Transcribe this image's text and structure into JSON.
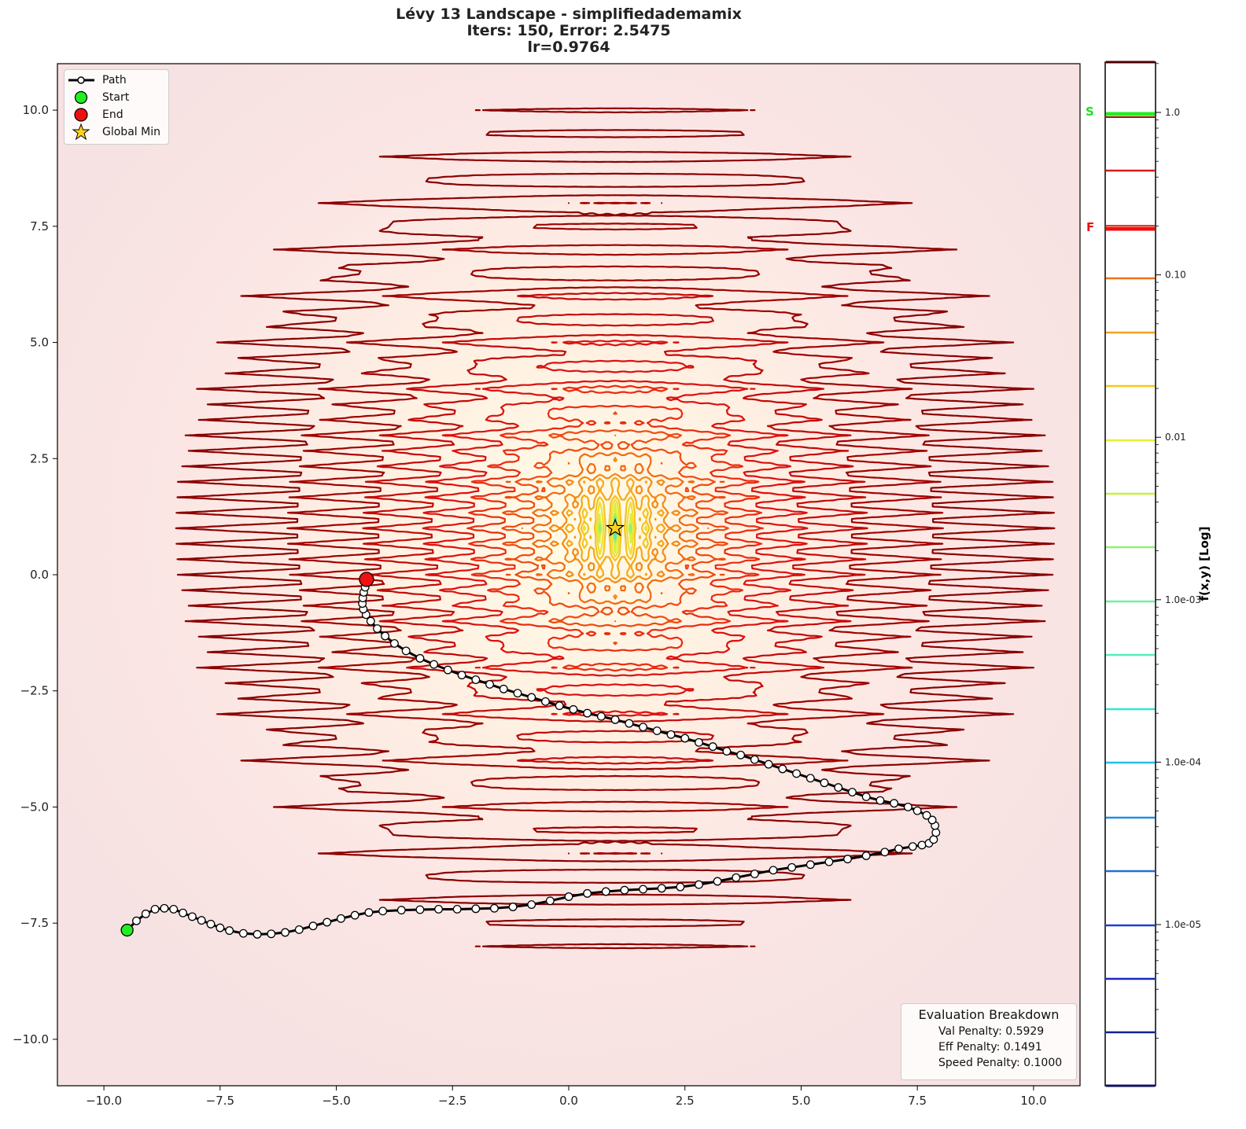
{
  "title": {
    "line1": "Lévy 13 Landscape - simplifiedademamix",
    "line2": "Iters: 150, Error: 2.5475",
    "line3": "lr=0.9764"
  },
  "legend": {
    "items": [
      {
        "label": "Path",
        "icon": "line-with-open-circle"
      },
      {
        "label": "Start",
        "icon": "green-circle"
      },
      {
        "label": "End",
        "icon": "red-circle"
      },
      {
        "label": "Global Min",
        "icon": "yellow-star"
      }
    ]
  },
  "eval_box": {
    "header": "Evaluation Breakdown",
    "val_penalty": "Val Penalty: 0.5929",
    "eff_penalty": "Eff Penalty: 0.1491",
    "speed_penalty": "Speed Penalty: 0.1000"
  },
  "colorbar": {
    "label": "f(x,y) [Log]",
    "ticks": [
      "1.0",
      "0.10",
      "0.01",
      "1.0e-03",
      "1.0e-04",
      "1.0e-05"
    ],
    "start_marker": "S",
    "final_marker": "F",
    "start_marker_color": "#22dd22",
    "final_marker_color": "#ee1111"
  },
  "chart_data": {
    "type": "contour+line",
    "title": "Lévy 13 Landscape - simplifiedademamix / Iters: 150, Error: 2.5475 / lr=0.9764",
    "xlabel": "",
    "ylabel": "",
    "xlim": [
      -11,
      11
    ],
    "ylim": [
      -11,
      11
    ],
    "x_ticks": [
      "−10.0",
      "−7.5",
      "−5.0",
      "−2.5",
      "0.0",
      "2.5",
      "5.0",
      "7.5",
      "10.0"
    ],
    "y_ticks": [
      "10.0",
      "7.5",
      "5.0",
      "2.5",
      "0.0",
      "−2.5",
      "−5.0",
      "−7.5",
      "−10.0"
    ],
    "colorbar_scale": "log",
    "colorbar_range": [
      1e-06,
      2.0
    ],
    "global_min": {
      "x": 1.0,
      "y": 1.0
    },
    "start": {
      "x": -9.5,
      "y": -7.65
    },
    "end": {
      "x": -4.35,
      "y": -0.1
    },
    "iterations": 150,
    "error": 2.5475,
    "lr": 0.9764,
    "path": [
      [
        -9.5,
        -7.65
      ],
      [
        -9.3,
        -7.45
      ],
      [
        -9.1,
        -7.3
      ],
      [
        -8.9,
        -7.2
      ],
      [
        -8.7,
        -7.18
      ],
      [
        -8.5,
        -7.2
      ],
      [
        -8.3,
        -7.28
      ],
      [
        -8.1,
        -7.36
      ],
      [
        -7.9,
        -7.44
      ],
      [
        -7.7,
        -7.52
      ],
      [
        -7.5,
        -7.6
      ],
      [
        -7.3,
        -7.66
      ],
      [
        -7.0,
        -7.72
      ],
      [
        -6.7,
        -7.74
      ],
      [
        -6.4,
        -7.73
      ],
      [
        -6.1,
        -7.7
      ],
      [
        -5.8,
        -7.64
      ],
      [
        -5.5,
        -7.56
      ],
      [
        -5.2,
        -7.48
      ],
      [
        -4.9,
        -7.4
      ],
      [
        -4.6,
        -7.33
      ],
      [
        -4.3,
        -7.27
      ],
      [
        -4.0,
        -7.24
      ],
      [
        -3.6,
        -7.22
      ],
      [
        -3.2,
        -7.21
      ],
      [
        -2.8,
        -7.2
      ],
      [
        -2.4,
        -7.2
      ],
      [
        -2.0,
        -7.19
      ],
      [
        -1.6,
        -7.18
      ],
      [
        -1.2,
        -7.15
      ],
      [
        -0.8,
        -7.1
      ],
      [
        -0.4,
        -7.02
      ],
      [
        0.0,
        -6.93
      ],
      [
        0.4,
        -6.86
      ],
      [
        0.8,
        -6.82
      ],
      [
        1.2,
        -6.79
      ],
      [
        1.6,
        -6.77
      ],
      [
        2.0,
        -6.75
      ],
      [
        2.4,
        -6.72
      ],
      [
        2.8,
        -6.67
      ],
      [
        3.2,
        -6.6
      ],
      [
        3.6,
        -6.52
      ],
      [
        4.0,
        -6.44
      ],
      [
        4.4,
        -6.36
      ],
      [
        4.8,
        -6.3
      ],
      [
        5.2,
        -6.24
      ],
      [
        5.6,
        -6.18
      ],
      [
        6.0,
        -6.12
      ],
      [
        6.4,
        -6.05
      ],
      [
        6.8,
        -5.97
      ],
      [
        7.1,
        -5.9
      ],
      [
        7.4,
        -5.85
      ],
      [
        7.6,
        -5.82
      ],
      [
        7.75,
        -5.78
      ],
      [
        7.85,
        -5.7
      ],
      [
        7.9,
        -5.55
      ],
      [
        7.88,
        -5.4
      ],
      [
        7.82,
        -5.28
      ],
      [
        7.7,
        -5.18
      ],
      [
        7.5,
        -5.08
      ],
      [
        7.3,
        -5.0
      ],
      [
        7.0,
        -4.92
      ],
      [
        6.7,
        -4.86
      ],
      [
        6.4,
        -4.78
      ],
      [
        6.1,
        -4.68
      ],
      [
        5.8,
        -4.58
      ],
      [
        5.5,
        -4.48
      ],
      [
        5.2,
        -4.38
      ],
      [
        4.9,
        -4.28
      ],
      [
        4.6,
        -4.18
      ],
      [
        4.3,
        -4.08
      ],
      [
        4.0,
        -3.98
      ],
      [
        3.7,
        -3.88
      ],
      [
        3.4,
        -3.8
      ],
      [
        3.1,
        -3.7
      ],
      [
        2.8,
        -3.61
      ],
      [
        2.5,
        -3.52
      ],
      [
        2.2,
        -3.44
      ],
      [
        1.9,
        -3.36
      ],
      [
        1.6,
        -3.28
      ],
      [
        1.3,
        -3.2
      ],
      [
        1.0,
        -3.12
      ],
      [
        0.7,
        -3.05
      ],
      [
        0.4,
        -2.98
      ],
      [
        0.1,
        -2.9
      ],
      [
        -0.2,
        -2.82
      ],
      [
        -0.5,
        -2.73
      ],
      [
        -0.8,
        -2.64
      ],
      [
        -1.1,
        -2.55
      ],
      [
        -1.4,
        -2.46
      ],
      [
        -1.7,
        -2.36
      ],
      [
        -2.0,
        -2.26
      ],
      [
        -2.3,
        -2.16
      ],
      [
        -2.6,
        -2.05
      ],
      [
        -2.9,
        -1.93
      ],
      [
        -3.2,
        -1.8
      ],
      [
        -3.5,
        -1.64
      ],
      [
        -3.75,
        -1.48
      ],
      [
        -3.95,
        -1.32
      ],
      [
        -4.12,
        -1.16
      ],
      [
        -4.26,
        -1.0
      ],
      [
        -4.36,
        -0.86
      ],
      [
        -4.42,
        -0.74
      ],
      [
        -4.44,
        -0.62
      ],
      [
        -4.43,
        -0.5
      ],
      [
        -4.41,
        -0.38
      ],
      [
        -4.38,
        -0.27
      ],
      [
        -4.35,
        -0.17
      ],
      [
        -4.35,
        -0.1
      ]
    ],
    "contour_levels_colors": [
      "#8b0000",
      "#cc1111",
      "#e82020",
      "#f03a10",
      "#f06010",
      "#f48a10",
      "#f6b010",
      "#f0d020",
      "#e8f030",
      "#c0f040",
      "#80f080",
      "#60f0a0",
      "#40f0c0",
      "#30e0e0",
      "#20b0f0",
      "#2080e8",
      "#2060d8",
      "#1840c8",
      "#1020b0",
      "#101890"
    ],
    "background_cmap": "light-red-to-yellow (YlOrRd, low alpha)"
  }
}
